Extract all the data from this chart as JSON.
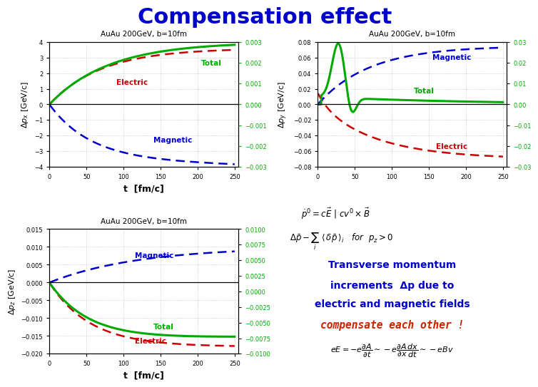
{
  "title": "Compensation effect",
  "title_color": "#0000cc",
  "title_fontsize": 22,
  "bg_color": "#ffffff",
  "subplot_label": "AuAu 200GeV, b=10fm",
  "electric_color": "#cc0000",
  "magnetic_color": "#0000cc",
  "total_color": "#00aa00",
  "right_axis_color": "#00aa00",
  "xlabel": "t  [fm/c]",
  "text_blue": "#0000cc",
  "text_orange": "#cc2200",
  "formula_color": "#000000",
  "plot1_ylabel": "$\\Delta p_x$ [GeV/c]",
  "plot2_ylabel": "$\\Delta p_y$ [GeV/c]",
  "plot3_ylabel": "$\\Delta p_z$ [GeV/c]",
  "plot1_ylim": [
    -4,
    4
  ],
  "plot1_ylim2": [
    -0.003,
    0.003
  ],
  "plot2_ylim": [
    -0.08,
    0.08
  ],
  "plot2_ylim2": [
    -0.03,
    0.03
  ],
  "plot3_ylim": [
    -0.02,
    0.015
  ],
  "plot3_ylim2": [
    -0.01,
    0.01
  ]
}
